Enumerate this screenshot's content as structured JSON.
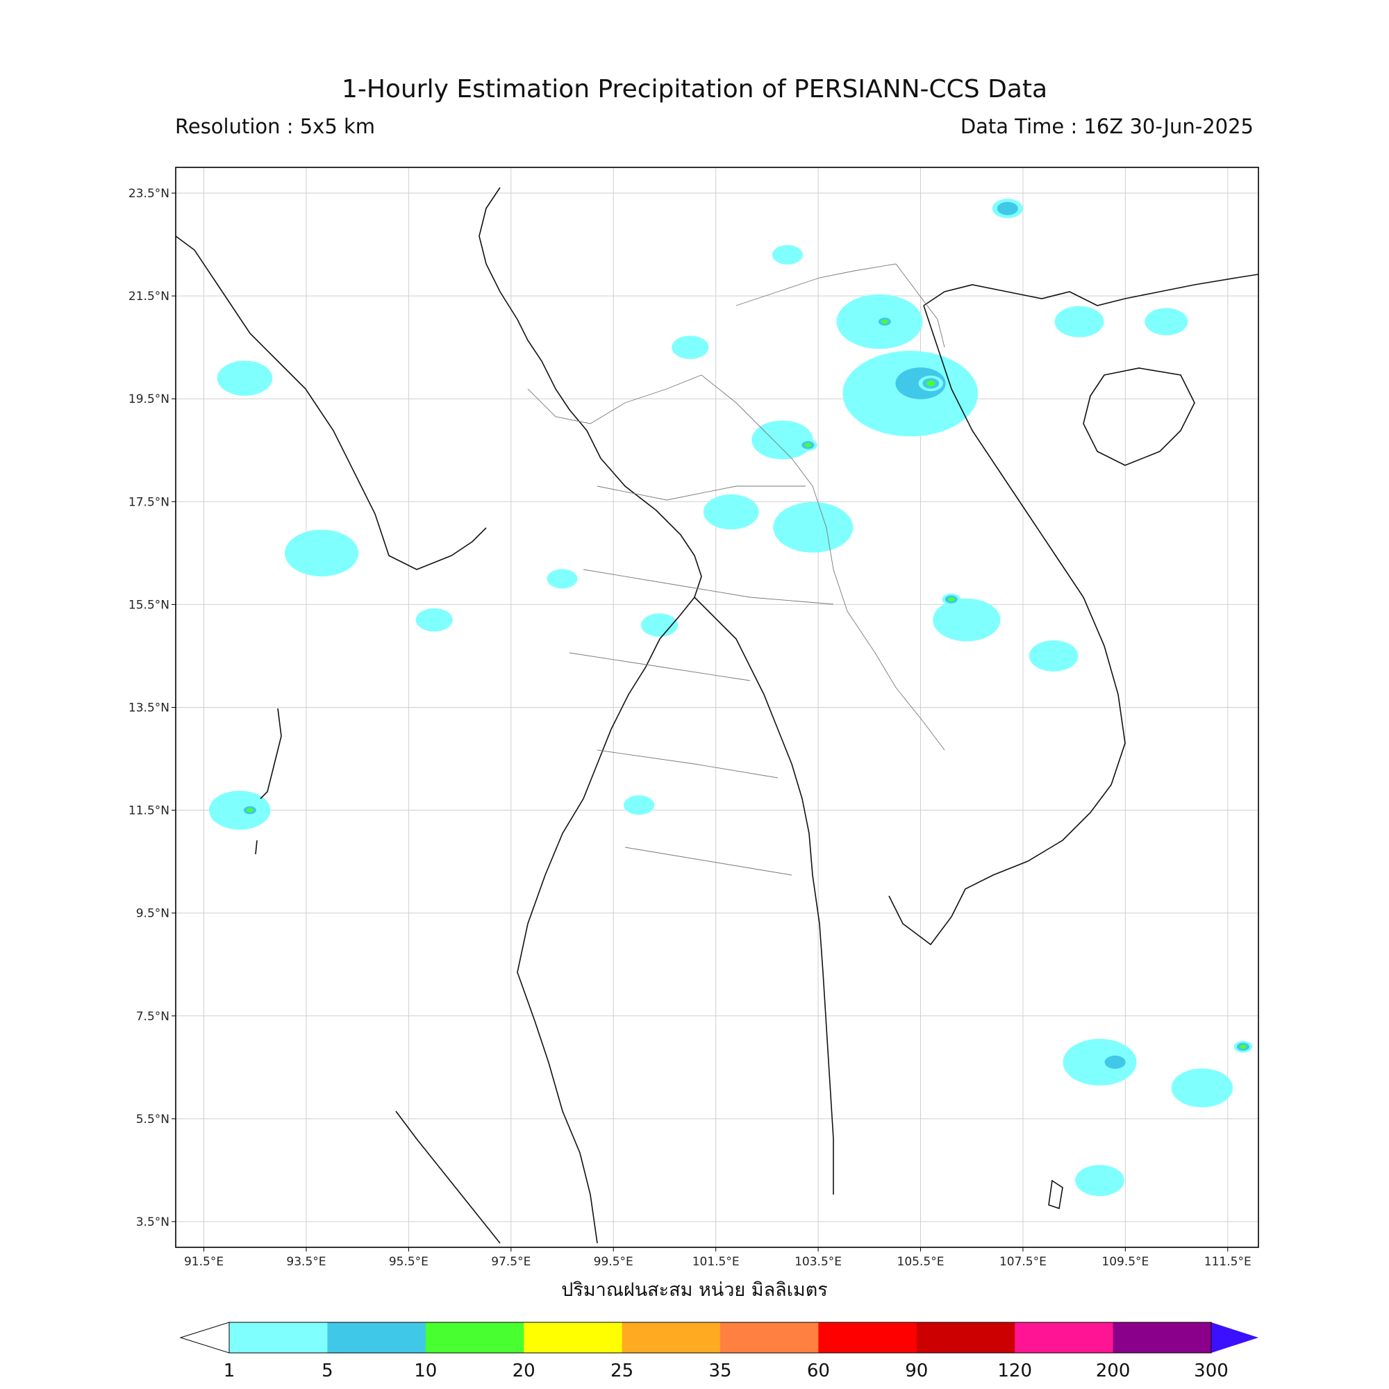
{
  "header": {
    "title": "1-Hourly Estimation Precipitation of PERSIANN-CCS Data",
    "resolution": "Resolution : 5x5 km",
    "data_time": "Data Time : 16Z 30-Jun-2025"
  },
  "map": {
    "lat_labels": [
      "23.5°N",
      "21.5°N",
      "19.5°N",
      "17.5°N",
      "15.5°N",
      "13.5°N",
      "11.5°N",
      "9.5°N",
      "7.5°N",
      "5.5°N",
      "3.5°N"
    ],
    "lon_labels": [
      "91.5°E",
      "93.5°E",
      "95.5°E",
      "97.5°E",
      "99.5°E",
      "101.5°E",
      "103.5°E",
      "105.5°E",
      "107.5°E",
      "109.5°E",
      "111.5°E"
    ],
    "lat_values": [
      23.5,
      21.5,
      19.5,
      17.5,
      15.5,
      13.5,
      11.5,
      9.5,
      7.5,
      5.5,
      3.5
    ],
    "lon_values": [
      91.5,
      93.5,
      95.5,
      97.5,
      99.5,
      101.5,
      103.5,
      105.5,
      107.5,
      109.5,
      111.5
    ],
    "extent": {
      "lon_min": 90.95,
      "lon_max": 112.1,
      "lat_min": 3.0,
      "lat_max": 24.0
    },
    "grid": true
  },
  "xlabel": "ปริมาณฝนสะสม หน่วย มิลลิเมตร",
  "colorbar": {
    "ticks": [
      "1",
      "5",
      "10",
      "20",
      "25",
      "35",
      "60",
      "90",
      "120",
      "200",
      "300"
    ],
    "colors": [
      "#80ffff",
      "#40c8e8",
      "#48ff30",
      "#ffff00",
      "#ffaa20",
      "#ff8040",
      "#ff0000",
      "#cc0000",
      "#ff1493",
      "#8b008b"
    ],
    "under_color": "#ffffff",
    "over_color": "#3b10ff"
  },
  "rain_cells": [
    {
      "lon": 105.3,
      "lat": 19.6,
      "level": 1,
      "size": 2.2
    },
    {
      "lon": 105.5,
      "lat": 19.8,
      "level": 2,
      "size": 1.2
    },
    {
      "lon": 105.7,
      "lat": 19.8,
      "level": 3,
      "size": 0.4
    },
    {
      "lon": 104.7,
      "lat": 21.0,
      "level": 1,
      "size": 1.4
    },
    {
      "lon": 104.8,
      "lat": 21.0,
      "level": 3,
      "size": 0.3
    },
    {
      "lon": 102.8,
      "lat": 18.7,
      "level": 1,
      "size": 1.0
    },
    {
      "lon": 103.3,
      "lat": 18.6,
      "level": 3,
      "size": 0.3
    },
    {
      "lon": 103.4,
      "lat": 17.0,
      "level": 1,
      "size": 1.3
    },
    {
      "lon": 106.4,
      "lat": 15.2,
      "level": 1,
      "size": 1.1
    },
    {
      "lon": 106.1,
      "lat": 15.6,
      "level": 3,
      "size": 0.3
    },
    {
      "lon": 108.1,
      "lat": 14.5,
      "level": 1,
      "size": 0.8
    },
    {
      "lon": 108.6,
      "lat": 21.0,
      "level": 1,
      "size": 0.8
    },
    {
      "lon": 107.2,
      "lat": 23.2,
      "level": 2,
      "size": 0.5
    },
    {
      "lon": 92.2,
      "lat": 11.5,
      "level": 1,
      "size": 1.0
    },
    {
      "lon": 92.4,
      "lat": 11.5,
      "level": 3,
      "size": 0.3
    },
    {
      "lon": 93.8,
      "lat": 16.5,
      "level": 1,
      "size": 1.2
    },
    {
      "lon": 92.3,
      "lat": 19.9,
      "level": 1,
      "size": 0.9
    },
    {
      "lon": 96.0,
      "lat": 15.2,
      "level": 1,
      "size": 0.6
    },
    {
      "lon": 101.0,
      "lat": 20.5,
      "level": 1,
      "size": 0.6
    },
    {
      "lon": 109.0,
      "lat": 6.6,
      "level": 1,
      "size": 1.2
    },
    {
      "lon": 109.3,
      "lat": 6.6,
      "level": 2,
      "size": 0.5
    },
    {
      "lon": 111.0,
      "lat": 6.1,
      "level": 1,
      "size": 1.0
    },
    {
      "lon": 111.8,
      "lat": 6.9,
      "level": 4,
      "size": 0.3
    },
    {
      "lon": 109.0,
      "lat": 4.3,
      "level": 1,
      "size": 0.8
    },
    {
      "lon": 100.0,
      "lat": 11.6,
      "level": 1,
      "size": 0.5
    },
    {
      "lon": 98.5,
      "lat": 16.0,
      "level": 1,
      "size": 0.5
    },
    {
      "lon": 101.8,
      "lat": 17.3,
      "level": 1,
      "size": 0.9
    },
    {
      "lon": 100.4,
      "lat": 15.1,
      "level": 1,
      "size": 0.6
    },
    {
      "lon": 102.9,
      "lat": 22.3,
      "level": 1,
      "size": 0.5
    },
    {
      "lon": 110.3,
      "lat": 21.0,
      "level": 1,
      "size": 0.7
    }
  ]
}
